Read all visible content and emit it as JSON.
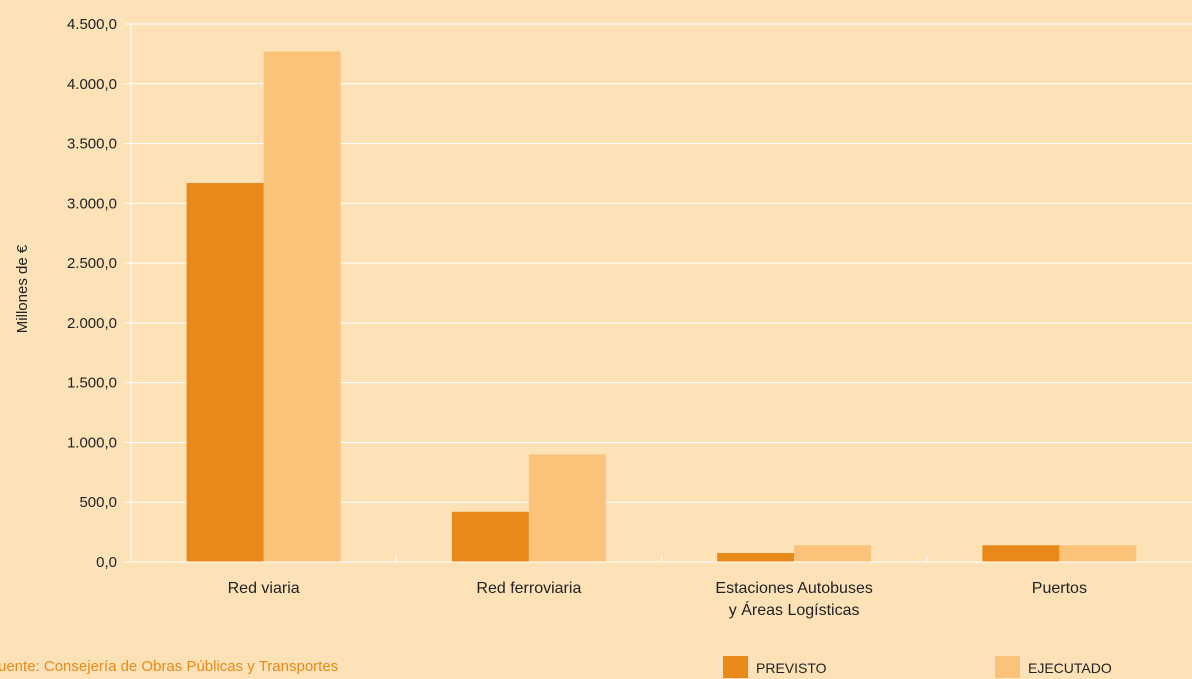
{
  "chart_data": {
    "type": "bar",
    "ylabel": "Millones de €",
    "xlabel": "",
    "categories": [
      [
        "Red viaria"
      ],
      [
        "Red ferroviaria"
      ],
      [
        "Estaciones Autobuses",
        "y Áreas Logísticas"
      ],
      [
        "Puertos"
      ]
    ],
    "series": [
      {
        "name": "PREVISTO",
        "color": "#e8891a",
        "values": [
          3170,
          420,
          75,
          140
        ]
      },
      {
        "name": "EJECUTADO",
        "color": "#fbc27a",
        "values": [
          4270,
          900,
          140,
          140
        ]
      }
    ],
    "ylim": [
      0,
      4500
    ],
    "yticks": [
      0,
      500,
      1000,
      1500,
      2000,
      2500,
      3000,
      3500,
      4000,
      4500
    ],
    "ytick_labels": [
      "0,0",
      "500,0",
      "1.000,0",
      "1.500,0",
      "2.000,0",
      "2.500,0",
      "3.000,0",
      "3.500,0",
      "4.000,0",
      "4.500,0"
    ],
    "grid": true,
    "legend_position": "bottom-right"
  },
  "source_text": "uente: Consejería de Obras Públicas y Transportes",
  "colors": {
    "background": "#fce2b6",
    "gridline": "#ffffff",
    "axis": "#ffffff",
    "source_text": "#e8891a"
  }
}
